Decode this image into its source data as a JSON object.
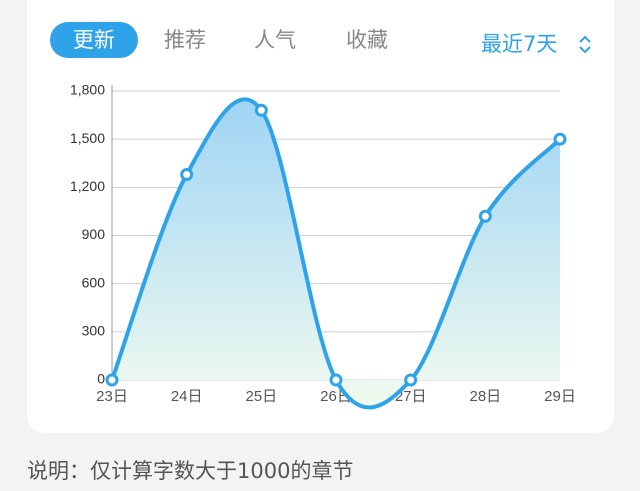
{
  "tabs": [
    "更新",
    "推荐",
    "人气",
    "收藏"
  ],
  "range": "最近7天",
  "note": "说明：仅计算字数大于1000的章节",
  "chart_data": {
    "type": "line",
    "categories": [
      "23日",
      "24日",
      "25日",
      "26日",
      "27日",
      "28日",
      "29日"
    ],
    "values": [
      0,
      1280,
      1680,
      0,
      0,
      1020,
      1500
    ],
    "color": "#2ea3ea",
    "ylim": [
      0,
      1800
    ],
    "yticks": [
      0,
      300,
      600,
      900,
      {
        "value": 1200,
        "label": "1,200"
      },
      {
        "value": 1500,
        "label": "1,500"
      },
      {
        "value": 1800,
        "label": "1,800"
      }
    ],
    "grid": true
  }
}
